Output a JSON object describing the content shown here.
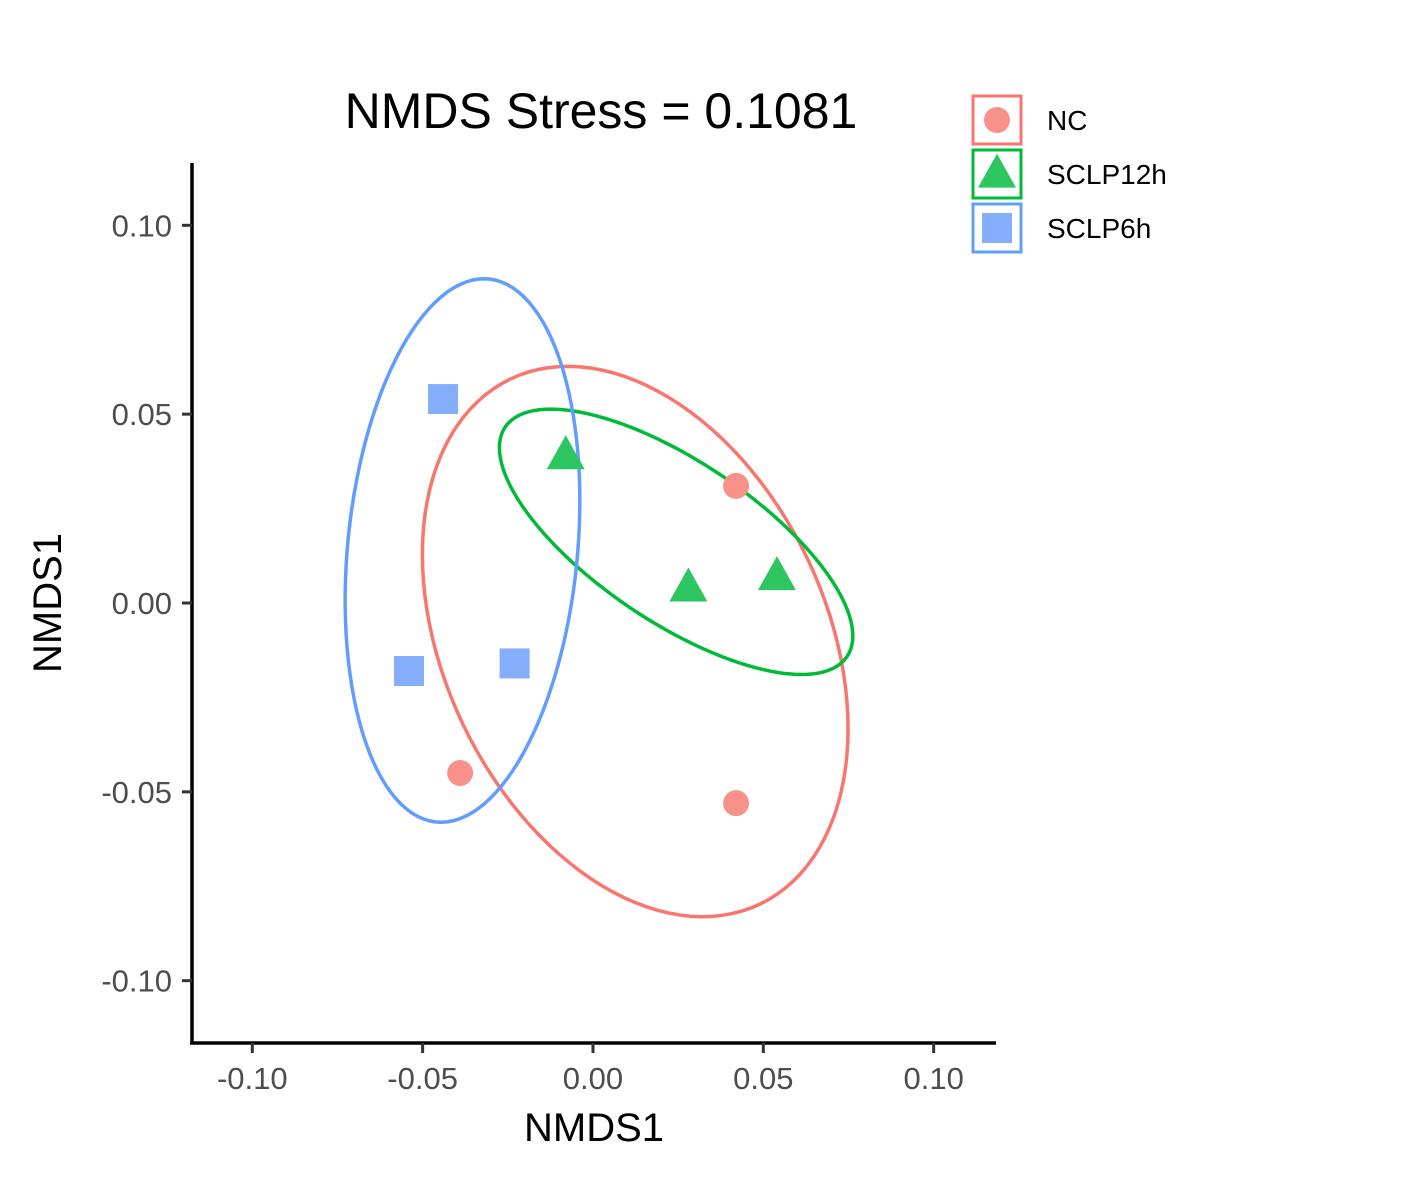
{
  "chart_data": {
    "type": "scatter",
    "title": "NMDS Stress = 0.1081",
    "xlabel": "NMDS1",
    "ylabel": "NMDS1",
    "xlim": [
      -0.1177,
      0.1183
    ],
    "ylim": [
      -0.1165,
      0.1165
    ],
    "xticks": [
      -0.1,
      -0.05,
      0.0,
      0.05,
      0.1
    ],
    "yticks": [
      -0.1,
      -0.05,
      0.0,
      0.05,
      0.1
    ],
    "xtick_labels": [
      "-0.10",
      "-0.05",
      "0.00",
      "0.05",
      "0.10"
    ],
    "ytick_labels": [
      "-0.10",
      "-0.05",
      "0.00",
      "0.05",
      "0.10"
    ],
    "grid": false,
    "legend_position": "top-right",
    "series": [
      {
        "name": "NC",
        "shape": "circle",
        "color": "#F8766D",
        "fill": "#F8918A",
        "points": [
          [
            0.042,
            0.031
          ],
          [
            -0.039,
            -0.045
          ],
          [
            0.042,
            -0.053
          ]
        ],
        "ellipse": {
          "center": [
            0.0124,
            -0.0102
          ],
          "rx": 0.0788,
          "ry": 0.0548,
          "angle_deg": -58
        }
      },
      {
        "name": "SCLP12h",
        "shape": "triangle",
        "color": "#00BA38",
        "fill": "#2DC660",
        "points": [
          [
            -0.008,
            0.039
          ],
          [
            0.028,
            0.004
          ],
          [
            0.054,
            0.007
          ]
        ],
        "ellipse": {
          "center": [
            0.0244,
            0.0162
          ],
          "rx": 0.0587,
          "ry": 0.0219,
          "angle_deg": -30.3
        }
      },
      {
        "name": "SCLP6h",
        "shape": "square",
        "color": "#619CFF",
        "fill": "#84ADFC",
        "points": [
          [
            -0.044,
            0.054
          ],
          [
            -0.054,
            -0.018
          ],
          [
            -0.023,
            -0.016
          ]
        ],
        "ellipse": {
          "center": [
            -0.0383,
            0.0139
          ],
          "rx": 0.0723,
          "ry": 0.0337,
          "angle_deg": 83.6
        }
      }
    ]
  }
}
